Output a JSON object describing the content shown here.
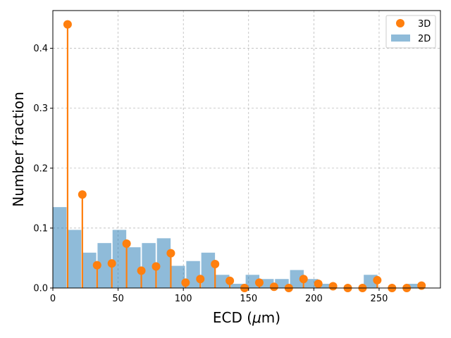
{
  "chart_data": {
    "type": "bar",
    "xlabel": "ECD (μm)",
    "ylabel": "Number fraction",
    "xlim": [
      0,
      297
    ],
    "ylim": [
      0,
      0.463
    ],
    "xticks": [
      0,
      50,
      100,
      150,
      200,
      250
    ],
    "yticks": [
      0.0,
      0.1,
      0.2,
      0.3,
      0.4
    ],
    "xtick_labels": [
      "0",
      "50",
      "100",
      "150",
      "200",
      "250"
    ],
    "ytick_labels": [
      "0.0",
      "0.1",
      "0.2",
      "0.3",
      "0.4"
    ],
    "grid": true,
    "legend_position": "top-right",
    "bar_width": 10.5,
    "series": [
      {
        "name": "3D",
        "type": "stem",
        "color": "#ff7f0e",
        "x": [
          11.3,
          22.6,
          33.9,
          45.2,
          56.5,
          67.8,
          79.1,
          90.4,
          101.7,
          113.0,
          124.3,
          135.6,
          146.9,
          158.2,
          169.5,
          180.8,
          192.1,
          203.4,
          214.7,
          226.0,
          237.3,
          248.6,
          259.9,
          271.2,
          282.5
        ],
        "y": [
          0.44,
          0.156,
          0.038,
          0.041,
          0.074,
          0.029,
          0.036,
          0.058,
          0.009,
          0.015,
          0.04,
          0.012,
          0.0,
          0.009,
          0.002,
          0.0,
          0.015,
          0.007,
          0.003,
          0.0,
          0.0,
          0.013,
          0.0,
          0.0,
          0.004
        ]
      },
      {
        "name": "2D",
        "type": "bar",
        "color": "#1f77b4",
        "x": [
          5.25,
          16.5,
          28.0,
          39.5,
          51.0,
          62.0,
          73.5,
          85.0,
          96.0,
          107.5,
          119.0,
          130.0,
          141.5,
          153.0,
          164.0,
          175.5,
          187.0,
          198.0,
          209.5,
          221.0,
          232.5,
          243.5,
          255.0,
          266.5,
          277.5
        ],
        "y": [
          0.135,
          0.097,
          0.059,
          0.075,
          0.097,
          0.068,
          0.075,
          0.083,
          0.037,
          0.045,
          0.059,
          0.022,
          0.007,
          0.022,
          0.015,
          0.015,
          0.03,
          0.015,
          0.007,
          0.0,
          0.0,
          0.022,
          0.0,
          0.0,
          0.007
        ]
      }
    ]
  }
}
